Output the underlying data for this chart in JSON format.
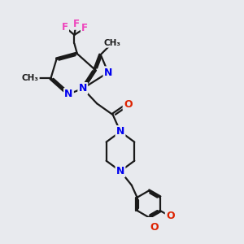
{
  "bg_color": "#e8eaee",
  "bond_color": "#1a1a1a",
  "N_color": "#0000ee",
  "O_color": "#dd2200",
  "F_color": "#ee44bb",
  "figsize": [
    3.0,
    3.0
  ],
  "dpi": 100,
  "xlim": [
    0,
    10
  ],
  "ylim": [
    0,
    10
  ]
}
